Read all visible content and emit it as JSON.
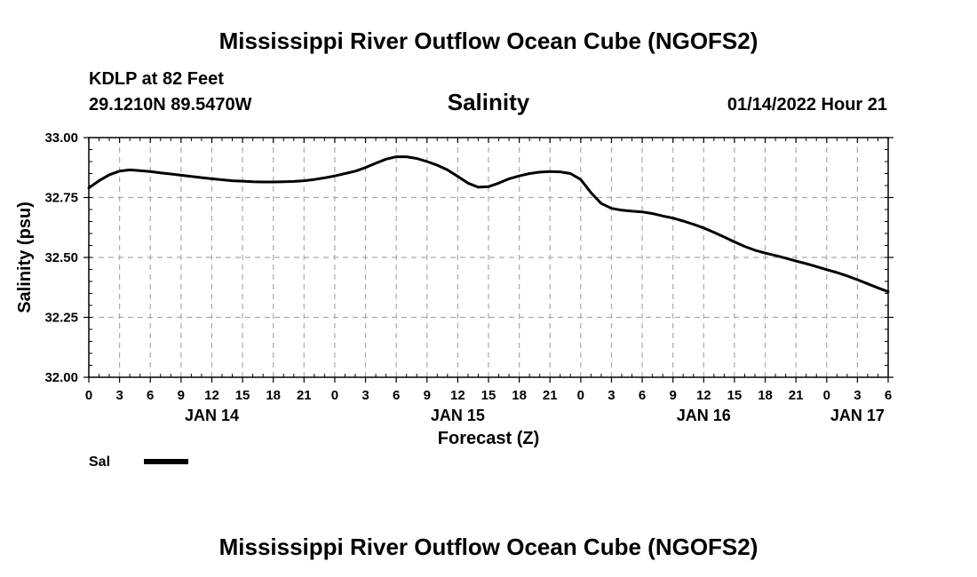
{
  "header": {
    "title": "Mississippi River Outflow Ocean Cube (NGOFS2)",
    "station_line": "KDLP at 82 Feet",
    "coords_line": "29.1210N  89.5470W",
    "date_line": "01/14/2022 Hour 21"
  },
  "footer": {
    "title": "Mississippi River Outflow Ocean Cube (NGOFS2)"
  },
  "chart_data": {
    "type": "line",
    "title": "Salinity",
    "xlabel": "Forecast (Z)",
    "ylabel": "Salinity (psu)",
    "ylim": [
      32.0,
      33.0
    ],
    "xlim": [
      0,
      78
    ],
    "x_unit": "hours since 2022-01-14 00Z",
    "grid": true,
    "y_ticks": [
      "32.00",
      "32.25",
      "32.50",
      "32.75",
      "33.00"
    ],
    "y_tick_values": [
      32.0,
      32.25,
      32.5,
      32.75,
      33.0
    ],
    "x_ticks": [
      "0",
      "3",
      "6",
      "9",
      "12",
      "15",
      "18",
      "21",
      "0",
      "3",
      "6",
      "9",
      "12",
      "15",
      "18",
      "21",
      "0",
      "3",
      "6",
      "9",
      "12",
      "15",
      "18",
      "21",
      "0",
      "3",
      "6"
    ],
    "x_tick_values": [
      0,
      3,
      6,
      9,
      12,
      15,
      18,
      21,
      24,
      27,
      30,
      33,
      36,
      39,
      42,
      45,
      48,
      51,
      54,
      57,
      60,
      63,
      66,
      69,
      72,
      75,
      78
    ],
    "day_labels": [
      {
        "label": "JAN 14",
        "x": 12
      },
      {
        "label": "JAN 15",
        "x": 36
      },
      {
        "label": "JAN 16",
        "x": 60
      },
      {
        "label": "JAN 17",
        "x": 75
      }
    ],
    "legend": "bottom-left",
    "series": [
      {
        "name": "Sal",
        "color": "#000000",
        "x": [
          0,
          1,
          2,
          3,
          4,
          5,
          6,
          7,
          8,
          9,
          10,
          11,
          12,
          13,
          14,
          15,
          16,
          17,
          18,
          19,
          20,
          21,
          22,
          23,
          24,
          25,
          26,
          27,
          28,
          29,
          30,
          31,
          32,
          33,
          34,
          35,
          36,
          37,
          38,
          39,
          40,
          41,
          42,
          43,
          44,
          45,
          46,
          47,
          48,
          49,
          50,
          51,
          52,
          53,
          54,
          55,
          56,
          57,
          58,
          59,
          60,
          61,
          62,
          63,
          64,
          65,
          66,
          67,
          68,
          69,
          70,
          71,
          72,
          73,
          74,
          75,
          76,
          77,
          78
        ],
        "values": [
          32.79,
          32.82,
          32.845,
          32.86,
          32.865,
          32.862,
          32.858,
          32.853,
          32.848,
          32.843,
          32.838,
          32.833,
          32.828,
          32.824,
          32.82,
          32.818,
          32.816,
          32.815,
          32.815,
          32.816,
          32.817,
          32.82,
          32.825,
          32.832,
          32.84,
          32.85,
          32.86,
          32.875,
          32.893,
          32.91,
          32.92,
          32.92,
          32.913,
          32.9,
          32.885,
          32.865,
          32.838,
          32.81,
          32.793,
          32.795,
          32.81,
          32.828,
          32.84,
          32.85,
          32.856,
          32.858,
          32.857,
          32.85,
          32.825,
          32.77,
          32.725,
          32.705,
          32.697,
          32.693,
          32.69,
          32.683,
          32.673,
          32.664,
          32.652,
          32.638,
          32.623,
          32.605,
          32.585,
          32.565,
          32.546,
          32.53,
          32.518,
          32.508,
          32.497,
          32.485,
          32.474,
          32.462,
          32.449,
          32.437,
          32.423,
          32.407,
          32.39,
          32.373,
          32.357
        ]
      }
    ]
  }
}
